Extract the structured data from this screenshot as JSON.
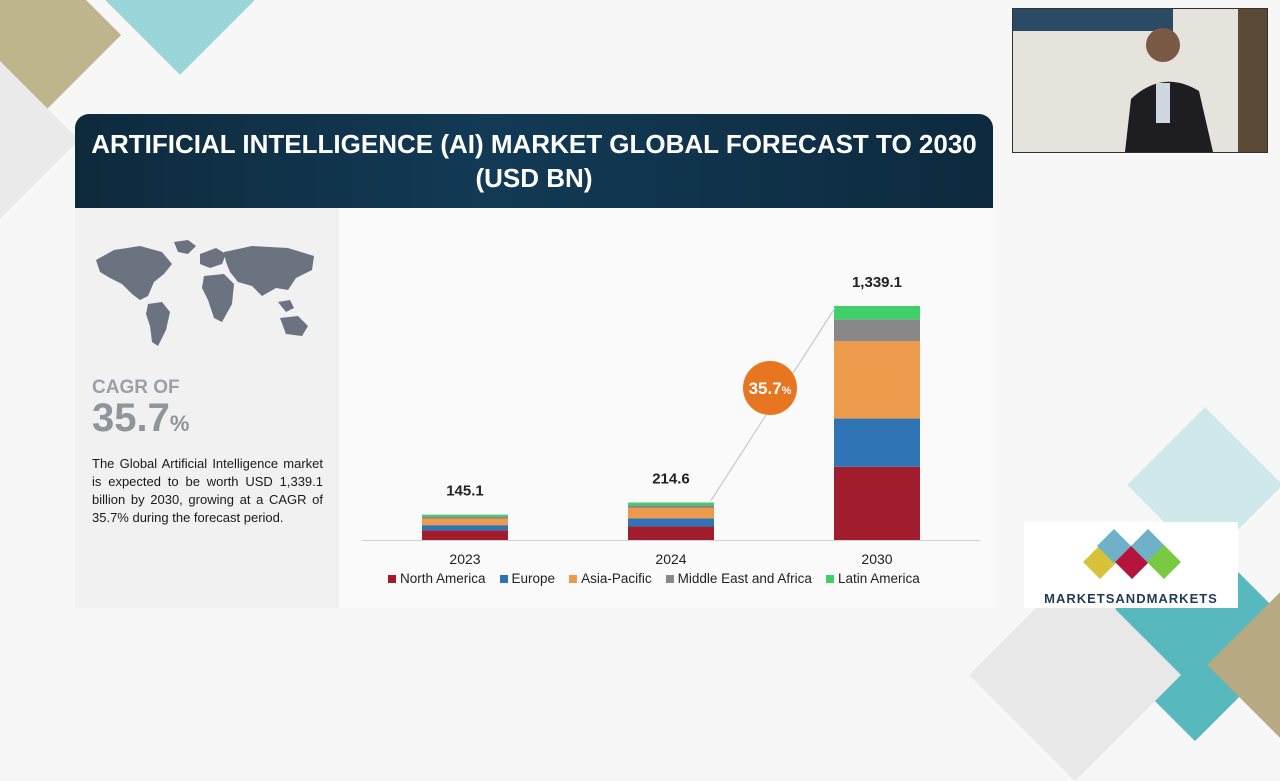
{
  "slide": {
    "title": "ARTIFICIAL INTELLIGENCE (AI) MARKET GLOBAL FORECAST TO 2030 (USD BN)"
  },
  "cagr": {
    "label": "CAGR OF",
    "value": "35.7",
    "unit": "%"
  },
  "summary_text": "The Global Artificial Intelligence market is expected to be worth USD 1,339.1 billion by 2030, growing at a CAGR of 35.7% during the forecast period.",
  "logo": {
    "text": "MARKETSANDMARKETS"
  },
  "colors": {
    "North America": "#a11d2e",
    "Europe": "#2f74b5",
    "Asia-Pacific": "#ee9a4d",
    "Middle East and Africa": "#888888",
    "Latin America": "#3fd06a",
    "cagr_badge": "#e8751f",
    "header_bg": "#0f2d42"
  },
  "chart_data": {
    "type": "bar",
    "stacked": true,
    "categories": [
      "2023",
      "2024",
      "2030"
    ],
    "totals": [
      "145.1",
      "214.6",
      "1,339.1"
    ],
    "series": [
      {
        "name": "North America",
        "values": [
          55.0,
          77.5,
          419.0
        ]
      },
      {
        "name": "Europe",
        "values": [
          30.0,
          46.0,
          276.0
        ]
      },
      {
        "name": "Asia-Pacific",
        "values": [
          38.0,
          60.0,
          443.0
        ]
      },
      {
        "name": "Middle East and Africa",
        "values": [
          11.0,
          16.0,
          125.0
        ]
      },
      {
        "name": "Latin America",
        "values": [
          11.1,
          15.1,
          76.1
        ]
      }
    ],
    "annotation": {
      "text": "35.7",
      "unit": "%"
    },
    "legend_position": "bottom",
    "grid": false
  }
}
